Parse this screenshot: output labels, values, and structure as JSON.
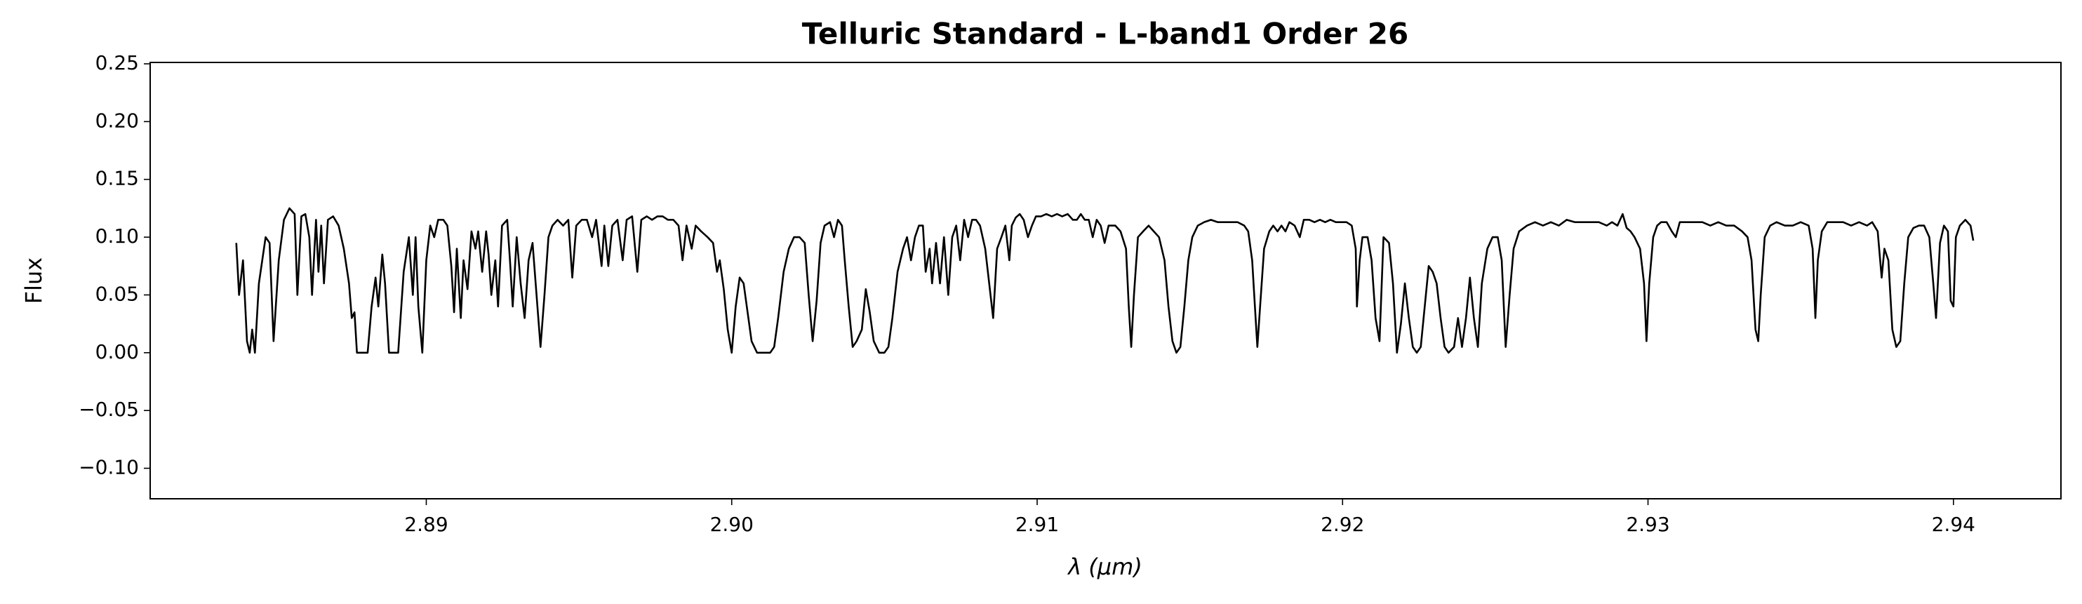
{
  "chart_data": {
    "type": "line",
    "title": "Telluric Standard - L-band1 Order 26",
    "xlabel": "λ (μm)",
    "ylabel": "Flux",
    "color": "#000000",
    "xlim": [
      2.88096,
      2.94352
    ],
    "ylim": [
      -0.1264,
      0.2512
    ],
    "xticks": [
      {
        "value": 2.89,
        "label": "2.89"
      },
      {
        "value": 2.9,
        "label": "2.90"
      },
      {
        "value": 2.91,
        "label": "2.91"
      },
      {
        "value": 2.92,
        "label": "2.92"
      },
      {
        "value": 2.93,
        "label": "2.93"
      },
      {
        "value": 2.94,
        "label": "2.94"
      }
    ],
    "yticks": [
      {
        "value": -0.1,
        "label": "−0.10"
      },
      {
        "value": -0.05,
        "label": "−0.05"
      },
      {
        "value": 0,
        "label": "0.00"
      },
      {
        "value": 0.05,
        "label": "0.05"
      },
      {
        "value": 0.1,
        "label": "0.10"
      },
      {
        "value": 0.15,
        "label": "0.15"
      },
      {
        "value": 0.2,
        "label": "0.20"
      },
      {
        "value": 0.25,
        "label": "0.25"
      }
    ],
    "x": [
      2.88378,
      2.88387,
      2.884,
      2.88413,
      2.88422,
      2.8843,
      2.88439,
      2.88452,
      2.88474,
      2.88487,
      2.885,
      2.88517,
      2.88534,
      2.88552,
      2.88569,
      2.88578,
      2.88591,
      2.88604,
      2.88617,
      2.88626,
      2.88639,
      2.88647,
      2.88656,
      2.88665,
      2.88678,
      2.88695,
      2.88713,
      2.8873,
      2.88747,
      2.88756,
      2.88765,
      2.88773,
      2.88791,
      2.88808,
      2.88821,
      2.88834,
      2.88843,
      2.88856,
      2.88865,
      2.88878,
      2.88895,
      2.88908,
      2.88926,
      2.88943,
      2.88956,
      2.88965,
      2.88974,
      2.88987,
      2.89,
      2.89013,
      2.89026,
      2.89039,
      2.89056,
      2.89069,
      2.89082,
      2.89091,
      2.891,
      2.89113,
      2.89122,
      2.89135,
      2.89148,
      2.89161,
      2.8917,
      2.89183,
      2.89196,
      2.89204,
      2.89213,
      2.89226,
      2.89235,
      2.89248,
      2.89265,
      2.89274,
      2.89283,
      2.89296,
      2.89309,
      2.89322,
      2.89335,
      2.89348,
      2.89361,
      2.89374,
      2.89387,
      2.894,
      2.89413,
      2.8943,
      2.89448,
      2.89465,
      2.89478,
      2.89491,
      2.89509,
      2.89526,
      2.89543,
      2.89556,
      2.89574,
      2.89583,
      2.89596,
      2.89609,
      2.89626,
      2.89643,
      2.89656,
      2.89674,
      2.89691,
      2.89704,
      2.89722,
      2.89739,
      2.89757,
      2.89774,
      2.89791,
      2.89809,
      2.89826,
      2.89839,
      2.89852,
      2.89869,
      2.89882,
      2.899,
      2.89921,
      2.89939,
      2.89952,
      2.89961,
      2.89974,
      2.89987,
      2.9,
      2.90013,
      2.90026,
      2.90039,
      2.90052,
      2.90065,
      2.90083,
      2.90104,
      2.90126,
      2.90139,
      2.90152,
      2.9017,
      2.90187,
      2.90204,
      2.90222,
      2.90239,
      2.90252,
      2.90265,
      2.90278,
      2.90291,
      2.90304,
      2.90322,
      2.90335,
      2.90348,
      2.90361,
      2.9037,
      2.90383,
      2.90396,
      2.90409,
      2.90426,
      2.90439,
      2.90452,
      2.90465,
      2.90483,
      2.905,
      2.90513,
      2.90526,
      2.90543,
      2.90561,
      2.90574,
      2.90587,
      2.906,
      2.90613,
      2.90626,
      2.90635,
      2.90648,
      2.90656,
      2.90669,
      2.90682,
      2.90695,
      2.90709,
      2.90722,
      2.90735,
      2.90748,
      2.90761,
      2.90774,
      2.90787,
      2.908,
      2.90813,
      2.9083,
      2.90843,
      2.90856,
      2.90869,
      2.90883,
      2.90896,
      2.90909,
      2.90917,
      2.9093,
      2.90943,
      2.90956,
      2.9097,
      2.90983,
      2.90996,
      2.91013,
      2.9103,
      2.91048,
      2.91065,
      2.91082,
      2.911,
      2.91117,
      2.9113,
      2.91143,
      2.91156,
      2.91169,
      2.91182,
      2.91195,
      2.91208,
      2.91221,
      2.91234,
      2.91256,
      2.91273,
      2.91291,
      2.913,
      2.91308,
      2.91317,
      2.9133,
      2.91347,
      2.91365,
      2.91382,
      2.91399,
      2.91417,
      2.9143,
      2.91443,
      2.91456,
      2.91469,
      2.91482,
      2.91495,
      2.91508,
      2.91526,
      2.91547,
      2.91569,
      2.91591,
      2.91613,
      2.91634,
      2.91656,
      2.91678,
      2.91691,
      2.91704,
      2.91713,
      2.91721,
      2.9173,
      2.91743,
      2.9176,
      2.91773,
      2.91787,
      2.918,
      2.91813,
      2.91826,
      2.91843,
      2.9186,
      2.91873,
      2.91891,
      2.91908,
      2.91926,
      2.91943,
      2.9196,
      2.91978,
      2.91995,
      2.92013,
      2.9203,
      2.92043,
      2.92047,
      2.92056,
      2.92065,
      2.92082,
      2.92095,
      2.92108,
      2.92121,
      2.92134,
      2.92152,
      2.92165,
      2.92178,
      2.92191,
      2.92204,
      2.92217,
      2.9223,
      2.92243,
      2.92256,
      2.92269,
      2.92282,
      2.92295,
      2.92308,
      2.92321,
      2.92334,
      2.92347,
      2.92365,
      2.92378,
      2.92391,
      2.92404,
      2.92417,
      2.9243,
      2.92443,
      2.92456,
      2.92474,
      2.92491,
      2.92508,
      2.92521,
      2.92534,
      2.92547,
      2.9256,
      2.92578,
      2.92604,
      2.9263,
      2.92656,
      2.92682,
      2.92708,
      2.92734,
      2.9276,
      2.92787,
      2.92813,
      2.92839,
      2.92865,
      2.92882,
      2.929,
      2.92917,
      2.9293,
      2.92943,
      2.92956,
      2.92974,
      2.92987,
      2.92995,
      2.93004,
      2.93017,
      2.9303,
      2.93043,
      2.93061,
      2.93078,
      2.93091,
      2.93104,
      2.93126,
      2.93152,
      2.93178,
      2.93204,
      2.9323,
      2.93256,
      2.93282,
      2.93308,
      2.93326,
      2.93339,
      2.93352,
      2.93361,
      2.93369,
      2.93382,
      2.934,
      2.93421,
      2.93448,
      2.93474,
      2.935,
      2.93526,
      2.93539,
      2.93548,
      2.93556,
      2.93569,
      2.93587,
      2.93613,
      2.93639,
      2.93665,
      2.93691,
      2.93717,
      2.93734,
      2.93752,
      2.93765,
      2.93774,
      2.93787,
      2.938,
      2.93813,
      2.93826,
      2.93839,
      2.93852,
      2.93869,
      2.93887,
      2.93904,
      2.93921,
      2.93934,
      2.93943,
      2.93956,
      2.93969,
      2.93982,
      2.93991,
      2.94,
      2.94008,
      2.94021,
      2.94039,
      2.94056,
      2.94065
    ],
    "values": [
      0.095,
      0.05,
      0.08,
      0.01,
      0.0,
      0.02,
      0.0,
      0.06,
      0.1,
      0.095,
      0.01,
      0.08,
      0.115,
      0.125,
      0.12,
      0.05,
      0.118,
      0.12,
      0.1,
      0.05,
      0.115,
      0.07,
      0.11,
      0.06,
      0.115,
      0.118,
      0.11,
      0.09,
      0.06,
      0.03,
      0.035,
      0.0,
      0.0,
      0.0,
      0.04,
      0.065,
      0.04,
      0.085,
      0.06,
      0.0,
      0.0,
      0.0,
      0.07,
      0.1,
      0.05,
      0.1,
      0.04,
      0.0,
      0.08,
      0.11,
      0.1,
      0.115,
      0.115,
      0.11,
      0.075,
      0.035,
      0.09,
      0.03,
      0.08,
      0.055,
      0.105,
      0.09,
      0.105,
      0.07,
      0.105,
      0.085,
      0.05,
      0.08,
      0.04,
      0.11,
      0.115,
      0.08,
      0.04,
      0.1,
      0.06,
      0.03,
      0.08,
      0.095,
      0.05,
      0.005,
      0.05,
      0.1,
      0.11,
      0.115,
      0.11,
      0.115,
      0.065,
      0.11,
      0.115,
      0.115,
      0.1,
      0.115,
      0.075,
      0.11,
      0.075,
      0.11,
      0.115,
      0.08,
      0.115,
      0.118,
      0.07,
      0.115,
      0.118,
      0.115,
      0.118,
      0.118,
      0.115,
      0.115,
      0.11,
      0.08,
      0.11,
      0.09,
      0.11,
      0.105,
      0.1,
      0.095,
      0.07,
      0.08,
      0.055,
      0.02,
      0.0,
      0.04,
      0.065,
      0.06,
      0.035,
      0.01,
      0.0,
      0.0,
      0.0,
      0.005,
      0.03,
      0.07,
      0.09,
      0.1,
      0.1,
      0.095,
      0.05,
      0.01,
      0.045,
      0.095,
      0.11,
      0.113,
      0.1,
      0.115,
      0.11,
      0.08,
      0.04,
      0.005,
      0.01,
      0.02,
      0.055,
      0.035,
      0.01,
      0.0,
      0.0,
      0.005,
      0.03,
      0.07,
      0.09,
      0.1,
      0.08,
      0.1,
      0.11,
      0.11,
      0.07,
      0.09,
      0.06,
      0.095,
      0.06,
      0.1,
      0.05,
      0.1,
      0.11,
      0.08,
      0.115,
      0.1,
      0.115,
      0.115,
      0.11,
      0.09,
      0.06,
      0.03,
      0.09,
      0.1,
      0.11,
      0.08,
      0.11,
      0.117,
      0.12,
      0.115,
      0.1,
      0.11,
      0.118,
      0.118,
      0.12,
      0.118,
      0.12,
      0.118,
      0.12,
      0.115,
      0.115,
      0.12,
      0.115,
      0.115,
      0.1,
      0.115,
      0.11,
      0.095,
      0.11,
      0.11,
      0.105,
      0.09,
      0.04,
      0.005,
      0.05,
      0.1,
      0.105,
      0.11,
      0.105,
      0.1,
      0.08,
      0.04,
      0.01,
      0.0,
      0.005,
      0.04,
      0.08,
      0.1,
      0.11,
      0.113,
      0.115,
      0.113,
      0.113,
      0.113,
      0.113,
      0.11,
      0.105,
      0.08,
      0.04,
      0.005,
      0.04,
      0.09,
      0.105,
      0.11,
      0.105,
      0.11,
      0.105,
      0.113,
      0.11,
      0.1,
      0.115,
      0.115,
      0.113,
      0.115,
      0.113,
      0.115,
      0.113,
      0.113,
      0.113,
      0.11,
      0.09,
      0.04,
      0.08,
      0.1,
      0.1,
      0.08,
      0.03,
      0.01,
      0.1,
      0.095,
      0.06,
      0.0,
      0.025,
      0.06,
      0.03,
      0.005,
      0.0,
      0.005,
      0.04,
      0.075,
      0.07,
      0.06,
      0.03,
      0.005,
      0.0,
      0.005,
      0.03,
      0.005,
      0.03,
      0.065,
      0.03,
      0.005,
      0.06,
      0.09,
      0.1,
      0.1,
      0.08,
      0.005,
      0.05,
      0.09,
      0.105,
      0.11,
      0.113,
      0.11,
      0.113,
      0.11,
      0.115,
      0.113,
      0.113,
      0.113,
      0.113,
      0.11,
      0.113,
      0.11,
      0.12,
      0.108,
      0.105,
      0.1,
      0.09,
      0.06,
      0.01,
      0.06,
      0.1,
      0.11,
      0.113,
      0.113,
      0.105,
      0.1,
      0.113,
      0.113,
      0.113,
      0.113,
      0.11,
      0.113,
      0.11,
      0.11,
      0.105,
      0.1,
      0.08,
      0.02,
      0.01,
      0.05,
      0.1,
      0.11,
      0.113,
      0.11,
      0.11,
      0.113,
      0.11,
      0.09,
      0.03,
      0.08,
      0.105,
      0.113,
      0.113,
      0.113,
      0.11,
      0.113,
      0.11,
      0.113,
      0.105,
      0.065,
      0.09,
      0.08,
      0.02,
      0.005,
      0.01,
      0.06,
      0.1,
      0.108,
      0.11,
      0.11,
      0.1,
      0.06,
      0.03,
      0.095,
      0.11,
      0.105,
      0.045,
      0.04,
      0.1,
      0.11,
      0.115,
      0.11,
      0.097
    ]
  }
}
